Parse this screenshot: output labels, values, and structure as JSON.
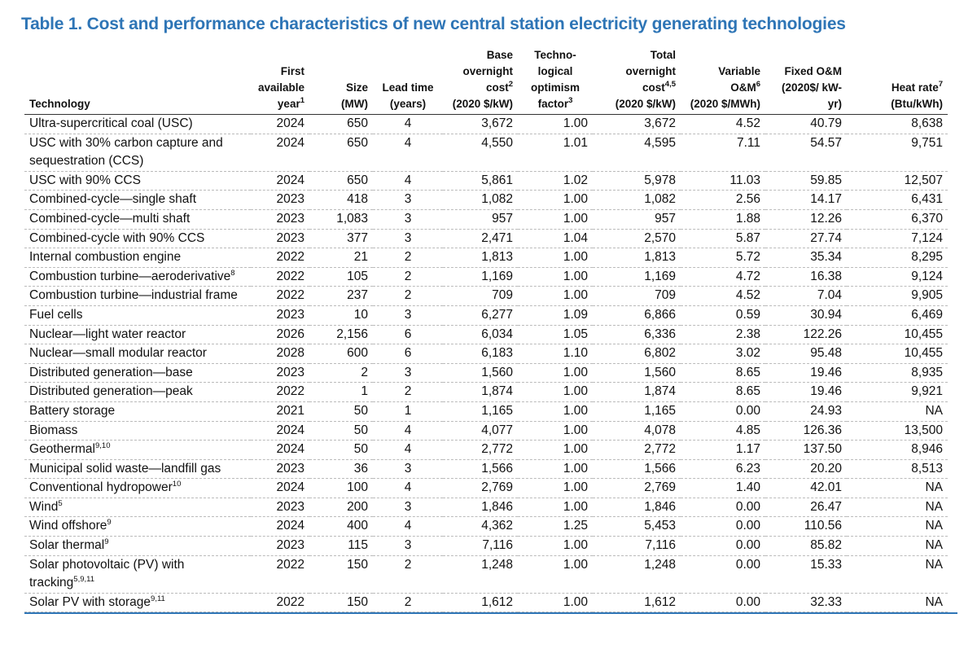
{
  "title": "Table 1. Cost and performance characteristics of new central station electricity generating technologies",
  "table": {
    "header": [
      {
        "text": "Technology"
      },
      {
        "text": "First available year",
        "note": "1"
      },
      {
        "text": "Size",
        "unit": "(MW)"
      },
      {
        "text": "Lead time",
        "unit": "(years)"
      },
      {
        "text": "Base overnight cost",
        "note": "2",
        "unit": "(2020 $/kW)"
      },
      {
        "text": "Techno-logical optimism factor",
        "note": "3"
      },
      {
        "text": "Total overnight cost",
        "note": "4,5",
        "unit": "(2020 $/kW)"
      },
      {
        "text": "Variable O&M",
        "note": "6",
        "unit": "(2020 $/MWh)"
      },
      {
        "text": "Fixed O&M",
        "unit": "(2020$/ kW-yr)"
      },
      {
        "text": "Heat rate",
        "note": "7",
        "unit": "(Btu/kWh)"
      }
    ],
    "rows": [
      {
        "technology": "Ultra-supercritical coal (USC)",
        "cells": [
          "2024",
          "650",
          "4",
          "3,672",
          "1.00",
          "3,672",
          "4.52",
          "40.79",
          "8,638"
        ]
      },
      {
        "technology": "USC with 30% carbon capture and sequestration (CCS)",
        "cells": [
          "2024",
          "650",
          "4",
          "4,550",
          "1.01",
          "4,595",
          "7.11",
          "54.57",
          "9,751"
        ]
      },
      {
        "technology": "USC with 90% CCS",
        "cells": [
          "2024",
          "650",
          "4",
          "5,861",
          "1.02",
          "5,978",
          "11.03",
          "59.85",
          "12,507"
        ]
      },
      {
        "technology": "Combined-cycle—single shaft",
        "cells": [
          "2023",
          "418",
          "3",
          "1,082",
          "1.00",
          "1,082",
          "2.56",
          "14.17",
          "6,431"
        ]
      },
      {
        "technology": "Combined-cycle—multi shaft",
        "cells": [
          "2023",
          "1,083",
          "3",
          "957",
          "1.00",
          "957",
          "1.88",
          "12.26",
          "6,370"
        ]
      },
      {
        "technology": "Combined-cycle with 90% CCS",
        "cells": [
          "2023",
          "377",
          "3",
          "2,471",
          "1.04",
          "2,570",
          "5.87",
          "27.74",
          "7,124"
        ]
      },
      {
        "technology": "Internal combustion engine",
        "cells": [
          "2022",
          "21",
          "2",
          "1,813",
          "1.00",
          "1,813",
          "5.72",
          "35.34",
          "8,295"
        ]
      },
      {
        "technology": "Combustion turbine—aeroderivative",
        "note": "8",
        "cells": [
          "2022",
          "105",
          "2",
          "1,169",
          "1.00",
          "1,169",
          "4.72",
          "16.38",
          "9,124"
        ]
      },
      {
        "technology": "Combustion turbine—industrial frame",
        "cells": [
          "2022",
          "237",
          "2",
          "709",
          "1.00",
          "709",
          "4.52",
          "7.04",
          "9,905"
        ]
      },
      {
        "technology": "Fuel cells",
        "cells": [
          "2023",
          "10",
          "3",
          "6,277",
          "1.09",
          "6,866",
          "0.59",
          "30.94",
          "6,469"
        ]
      },
      {
        "technology": "Nuclear—light water reactor",
        "cells": [
          "2026",
          "2,156",
          "6",
          "6,034",
          "1.05",
          "6,336",
          "2.38",
          "122.26",
          "10,455"
        ]
      },
      {
        "technology": "Nuclear—small modular reactor",
        "cells": [
          "2028",
          "600",
          "6",
          "6,183",
          "1.10",
          "6,802",
          "3.02",
          "95.48",
          "10,455"
        ]
      },
      {
        "technology": "Distributed generation—base",
        "cells": [
          "2023",
          "2",
          "3",
          "1,560",
          "1.00",
          "1,560",
          "8.65",
          "19.46",
          "8,935"
        ]
      },
      {
        "technology": "Distributed generation—peak",
        "cells": [
          "2022",
          "1",
          "2",
          "1,874",
          "1.00",
          "1,874",
          "8.65",
          "19.46",
          "9,921"
        ]
      },
      {
        "technology": "Battery storage",
        "cells": [
          "2021",
          "50",
          "1",
          "1,165",
          "1.00",
          "1,165",
          "0.00",
          "24.93",
          "NA"
        ]
      },
      {
        "technology": "Biomass",
        "cells": [
          "2024",
          "50",
          "4",
          "4,077",
          "1.00",
          "4,078",
          "4.85",
          "126.36",
          "13,500"
        ]
      },
      {
        "technology": "Geothermal",
        "note": "9,10",
        "cells": [
          "2024",
          "50",
          "4",
          "2,772",
          "1.00",
          "2,772",
          "1.17",
          "137.50",
          "8,946"
        ]
      },
      {
        "technology": "Municipal solid waste—landfill gas",
        "cells": [
          "2023",
          "36",
          "3",
          "1,566",
          "1.00",
          "1,566",
          "6.23",
          "20.20",
          "8,513"
        ]
      },
      {
        "technology": "Conventional hydropower",
        "note": "10",
        "cells": [
          "2024",
          "100",
          "4",
          "2,769",
          "1.00",
          "2,769",
          "1.40",
          "42.01",
          "NA"
        ]
      },
      {
        "technology": "Wind",
        "note": "5",
        "cells": [
          "2023",
          "200",
          "3",
          "1,846",
          "1.00",
          "1,846",
          "0.00",
          "26.47",
          "NA"
        ]
      },
      {
        "technology": "Wind offshore",
        "note": "9",
        "cells": [
          "2024",
          "400",
          "4",
          "4,362",
          "1.25",
          "5,453",
          "0.00",
          "110.56",
          "NA"
        ]
      },
      {
        "technology": "Solar thermal",
        "note": "9",
        "cells": [
          "2023",
          "115",
          "3",
          "7,116",
          "1.00",
          "7,116",
          "0.00",
          "85.82",
          "NA"
        ]
      },
      {
        "technology": "Solar photovoltaic (PV) with tracking",
        "note": "5,9,11",
        "cells": [
          "2022",
          "150",
          "2",
          "1,248",
          "1.00",
          "1,248",
          "0.00",
          "15.33",
          "NA"
        ]
      },
      {
        "technology": "Solar PV with storage",
        "note": "9,11",
        "cells": [
          "2022",
          "150",
          "2",
          "1,612",
          "1.00",
          "1,612",
          "0.00",
          "32.33",
          "NA"
        ]
      }
    ]
  }
}
